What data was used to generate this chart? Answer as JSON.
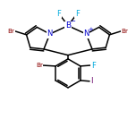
{
  "bg_color": "#ffffff",
  "bond_color": "#000000",
  "atom_colors": {
    "Br": "#8B0000",
    "F": "#00AADD",
    "B": "#0000CC",
    "N": "#0000CC",
    "I": "#660066",
    "C": "#000000"
  },
  "figsize": [
    1.52,
    1.52
  ],
  "dpi": 100,
  "xlim": [
    -4.5,
    4.5
  ],
  "ylim": [
    -5.0,
    4.0
  ]
}
